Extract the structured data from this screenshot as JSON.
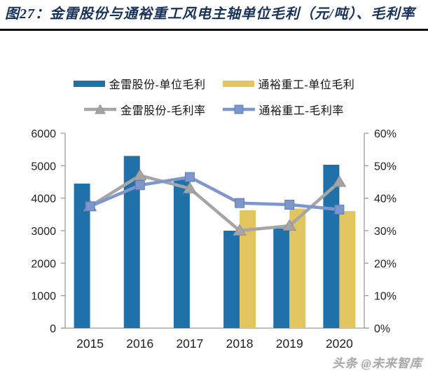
{
  "page": {
    "title": "图27：金雷股份与通裕重工风电主轴单位毛利（元/吨）、毛利率",
    "watermark": "头条 @未来智库"
  },
  "colors": {
    "title_text": "#17325a",
    "header_rule": "#0d0d14",
    "axis_line": "#9b9b9b",
    "tick_text": "#1f1f1f"
  },
  "chart_data": {
    "type": "bar+line",
    "categories": [
      "2015",
      "2016",
      "2017",
      "2018",
      "2019",
      "2020"
    ],
    "left_axis": {
      "min": 0,
      "max": 6000,
      "step": 1000,
      "tick_labels": [
        "0",
        "1000",
        "2000",
        "3000",
        "4000",
        "5000",
        "6000"
      ]
    },
    "right_axis": {
      "min": 0,
      "max": 60,
      "step": 10,
      "tick_labels": [
        "0%",
        "10%",
        "20%",
        "30%",
        "40%",
        "50%",
        "60%"
      ]
    },
    "grid": "off",
    "legend_position": "top",
    "series": [
      {
        "id": "jinlei-unit-profit",
        "name": "金雷股份-单位毛利",
        "type": "bar",
        "axis": "left",
        "color": "#2070AA",
        "values": [
          4450,
          5300,
          4570,
          3000,
          3070,
          5030
        ]
      },
      {
        "id": "tongyu-unit-profit",
        "name": "通裕重工-单位毛利",
        "type": "bar",
        "axis": "left",
        "color": "#E2C55F",
        "values": [
          null,
          null,
          null,
          3630,
          3680,
          3600
        ]
      },
      {
        "id": "jinlei-margin",
        "name": "金雷股份-毛利率",
        "type": "line",
        "axis": "right",
        "marker": "triangle",
        "color": "#A5A5A5",
        "marker_edge": "#8f8f8f",
        "values": [
          37.5,
          47,
          43,
          30,
          31.5,
          45
        ]
      },
      {
        "id": "tongyu-margin",
        "name": "通裕重工-毛利率",
        "type": "line",
        "axis": "right",
        "marker": "square",
        "color": "#7D96CB",
        "marker_edge": "#5d7cb8",
        "values": [
          37.5,
          44,
          46.5,
          38.5,
          38,
          36.5
        ]
      }
    ]
  }
}
